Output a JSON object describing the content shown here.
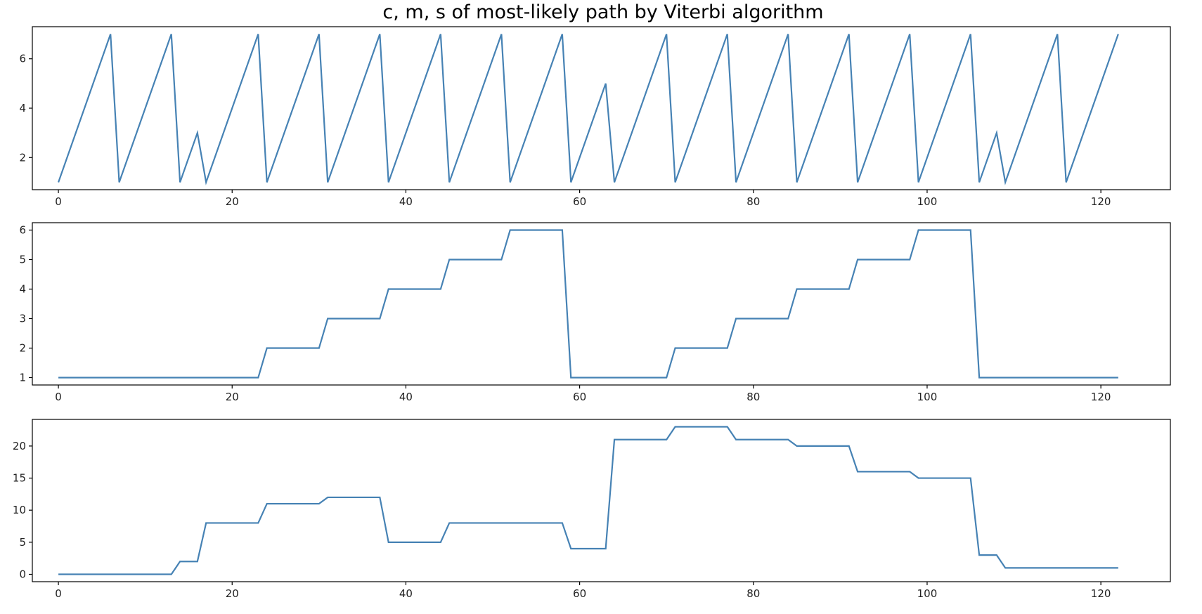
{
  "title": "c, m, s of most-likely path by Viterbi algorithm",
  "line_color": "#4682b4",
  "chart_data": [
    {
      "type": "line",
      "title": "",
      "xlabel": "",
      "ylabel": "",
      "xlim": [
        -3,
        128
      ],
      "ylim": [
        0.7,
        7.3
      ],
      "xticks": [
        0,
        20,
        40,
        60,
        80,
        100,
        120
      ],
      "yticks": [
        2,
        4,
        6
      ],
      "grid": false,
      "series": [
        {
          "x": [
            0,
            6,
            7,
            13,
            14,
            16,
            17,
            23,
            24,
            30,
            31,
            37,
            38,
            44,
            45,
            51,
            52,
            58,
            59,
            63,
            64,
            70,
            71,
            77,
            78,
            84,
            85,
            91,
            92,
            98,
            99,
            105,
            106,
            108,
            109,
            115,
            116,
            122
          ],
          "y": [
            1,
            7,
            1,
            7,
            1,
            3,
            1,
            7,
            1,
            7,
            1,
            7,
            1,
            7,
            1,
            7,
            1,
            7,
            1,
            5,
            1,
            7,
            1,
            7,
            1,
            7,
            1,
            7,
            1,
            7,
            1,
            7,
            1,
            3,
            1,
            7,
            1,
            7
          ]
        }
      ]
    },
    {
      "type": "line",
      "title": "",
      "xlabel": "",
      "ylabel": "",
      "xlim": [
        -3,
        128
      ],
      "ylim": [
        0.75,
        6.25
      ],
      "xticks": [
        0,
        20,
        40,
        60,
        80,
        100,
        120
      ],
      "yticks": [
        1,
        2,
        3,
        4,
        5,
        6
      ],
      "grid": false,
      "series": [
        {
          "x": [
            0,
            23,
            24,
            30,
            31,
            37,
            38,
            44,
            45,
            51,
            52,
            58,
            59,
            70,
            71,
            77,
            78,
            84,
            85,
            91,
            92,
            98,
            99,
            105,
            106,
            122
          ],
          "y": [
            1,
            1,
            2,
            2,
            3,
            3,
            4,
            4,
            5,
            5,
            6,
            6,
            1,
            1,
            2,
            2,
            3,
            3,
            4,
            4,
            5,
            5,
            6,
            6,
            1,
            1
          ]
        }
      ]
    },
    {
      "type": "line",
      "title": "",
      "xlabel": "",
      "ylabel": "",
      "xlim": [
        -3,
        128
      ],
      "ylim": [
        -1.15,
        24.15
      ],
      "xticks": [
        0,
        20,
        40,
        60,
        80,
        100,
        120
      ],
      "yticks": [
        0,
        5,
        10,
        15,
        20
      ],
      "grid": false,
      "series": [
        {
          "x": [
            0,
            13,
            14,
            16,
            17,
            23,
            24,
            30,
            31,
            37,
            38,
            44,
            45,
            58,
            59,
            63,
            64,
            70,
            71,
            77,
            78,
            84,
            85,
            91,
            92,
            98,
            99,
            105,
            106,
            108,
            109,
            122
          ],
          "y": [
            0,
            0,
            2,
            2,
            8,
            8,
            11,
            11,
            12,
            12,
            5,
            5,
            8,
            8,
            4,
            4,
            21,
            21,
            23,
            23,
            21,
            21,
            20,
            20,
            16,
            16,
            15,
            15,
            3,
            3,
            1,
            1
          ]
        }
      ]
    }
  ]
}
